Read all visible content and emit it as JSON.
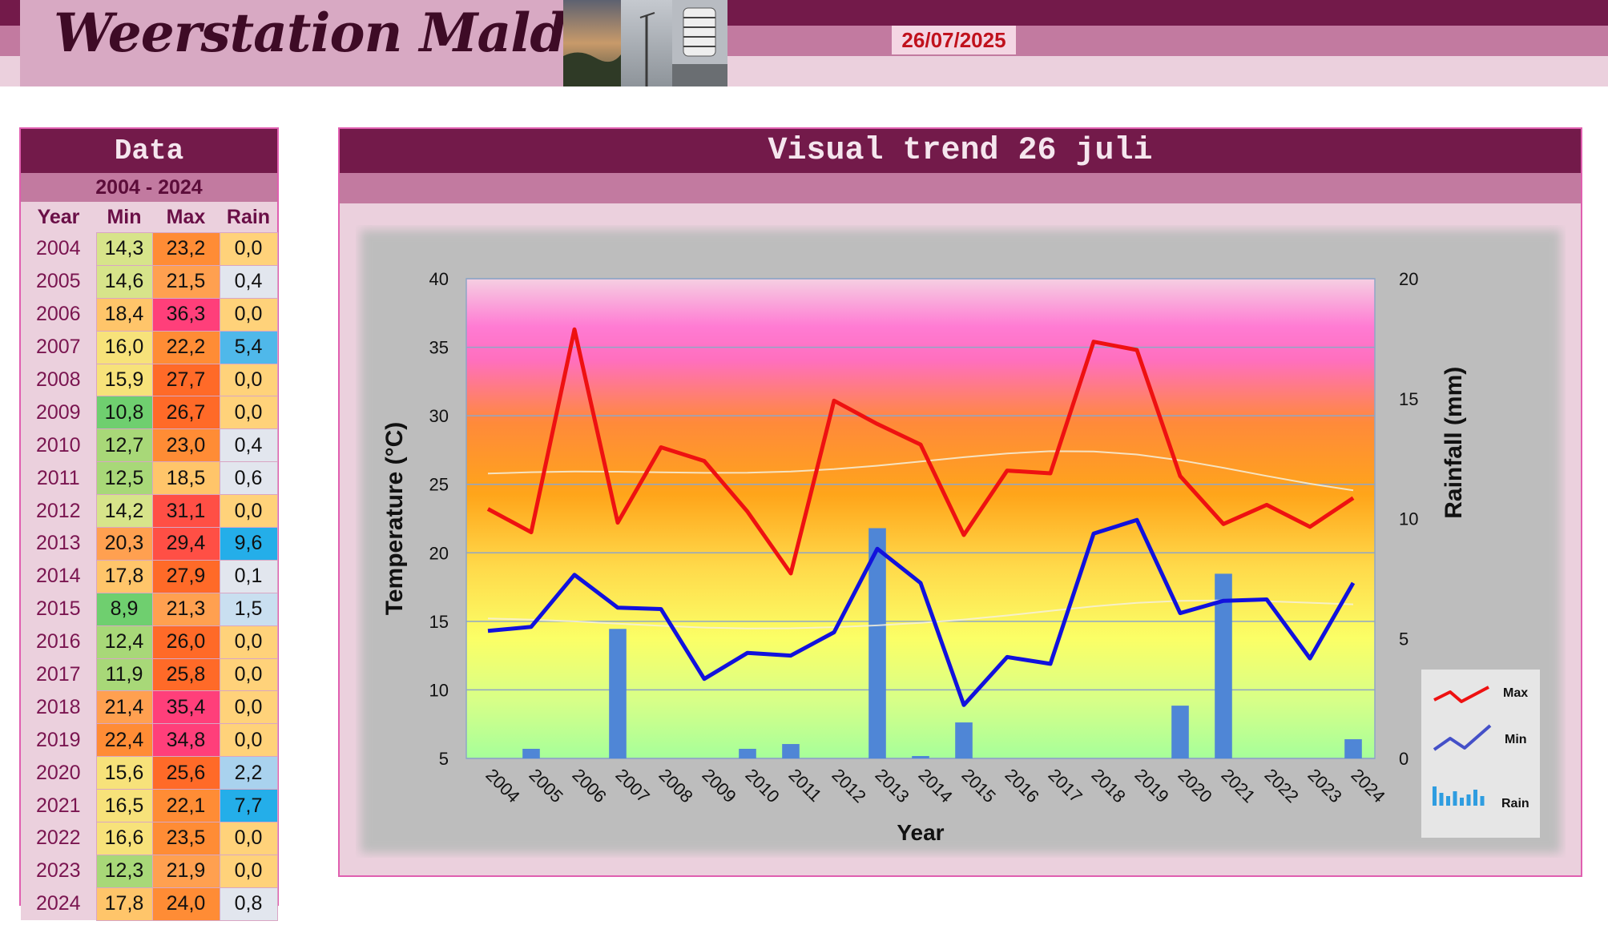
{
  "header": {
    "title": "Weerstation Malderen",
    "date": "26/07/2025"
  },
  "data_panel": {
    "title": "Data",
    "range": "2004 - 2024",
    "columns": [
      "Year",
      "Min",
      "Max",
      "Rain"
    ],
    "rows": [
      {
        "year": "2004",
        "min": "14,3",
        "max": "23,2",
        "rain": "0,0"
      },
      {
        "year": "2005",
        "min": "14,6",
        "max": "21,5",
        "rain": "0,4"
      },
      {
        "year": "2006",
        "min": "18,4",
        "max": "36,3",
        "rain": "0,0"
      },
      {
        "year": "2007",
        "min": "16,0",
        "max": "22,2",
        "rain": "5,4"
      },
      {
        "year": "2008",
        "min": "15,9",
        "max": "27,7",
        "rain": "0,0"
      },
      {
        "year": "2009",
        "min": "10,8",
        "max": "26,7",
        "rain": "0,0"
      },
      {
        "year": "2010",
        "min": "12,7",
        "max": "23,0",
        "rain": "0,4"
      },
      {
        "year": "2011",
        "min": "12,5",
        "max": "18,5",
        "rain": "0,6"
      },
      {
        "year": "2012",
        "min": "14,2",
        "max": "31,1",
        "rain": "0,0"
      },
      {
        "year": "2013",
        "min": "20,3",
        "max": "29,4",
        "rain": "9,6"
      },
      {
        "year": "2014",
        "min": "17,8",
        "max": "27,9",
        "rain": "0,1"
      },
      {
        "year": "2015",
        "min": "8,9",
        "max": "21,3",
        "rain": "1,5"
      },
      {
        "year": "2016",
        "min": "12,4",
        "max": "26,0",
        "rain": "0,0"
      },
      {
        "year": "2017",
        "min": "11,9",
        "max": "25,8",
        "rain": "0,0"
      },
      {
        "year": "2018",
        "min": "21,4",
        "max": "35,4",
        "rain": "0,0"
      },
      {
        "year": "2019",
        "min": "22,4",
        "max": "34,8",
        "rain": "0,0"
      },
      {
        "year": "2020",
        "min": "15,6",
        "max": "25,6",
        "rain": "2,2"
      },
      {
        "year": "2021",
        "min": "16,5",
        "max": "22,1",
        "rain": "7,7"
      },
      {
        "year": "2022",
        "min": "16,6",
        "max": "23,5",
        "rain": "0,0"
      },
      {
        "year": "2023",
        "min": "12,3",
        "max": "21,9",
        "rain": "0,0"
      },
      {
        "year": "2024",
        "min": "17,8",
        "max": "24,0",
        "rain": "0,8"
      }
    ]
  },
  "chart_panel": {
    "title": "Visual trend 26 juli"
  },
  "chart_data": {
    "type": "line",
    "x": [
      2004,
      2005,
      2006,
      2007,
      2008,
      2009,
      2010,
      2011,
      2012,
      2013,
      2014,
      2015,
      2016,
      2017,
      2018,
      2019,
      2020,
      2021,
      2022,
      2023,
      2024
    ],
    "series": [
      {
        "name": "Max",
        "type": "line",
        "axis": "left",
        "color": "#ee1111",
        "values": [
          23.2,
          21.5,
          36.3,
          22.2,
          27.7,
          26.7,
          23.0,
          18.5,
          31.1,
          29.4,
          27.9,
          21.3,
          26.0,
          25.8,
          35.4,
          34.8,
          25.6,
          22.1,
          23.5,
          21.9,
          24.0
        ]
      },
      {
        "name": "Min",
        "type": "line",
        "axis": "left",
        "color": "#1111dd",
        "values": [
          14.3,
          14.6,
          18.4,
          16.0,
          15.9,
          10.8,
          12.7,
          12.5,
          14.2,
          20.3,
          17.8,
          8.9,
          12.4,
          11.9,
          21.4,
          22.4,
          15.6,
          16.5,
          16.6,
          12.3,
          17.8
        ]
      },
      {
        "name": "Rain",
        "type": "bar",
        "axis": "right",
        "color": "#4f86d6",
        "values": [
          0.0,
          0.4,
          0.0,
          5.4,
          0.0,
          0.0,
          0.4,
          0.6,
          0.0,
          9.6,
          0.1,
          1.5,
          0.0,
          0.0,
          0.0,
          0.0,
          2.2,
          7.7,
          0.0,
          0.0,
          0.8
        ]
      }
    ],
    "xlabel": "Year",
    "ylabel": "Temperature (°C)",
    "y2label": "Rainfall (mm)",
    "ylim": [
      5,
      40
    ],
    "y2lim": [
      0,
      20
    ],
    "yticks": [
      5,
      10,
      15,
      20,
      25,
      30,
      35,
      40
    ],
    "y2ticks": [
      0,
      5,
      10,
      15,
      20
    ],
    "grid": true,
    "legend": "right",
    "trendlines": true
  }
}
